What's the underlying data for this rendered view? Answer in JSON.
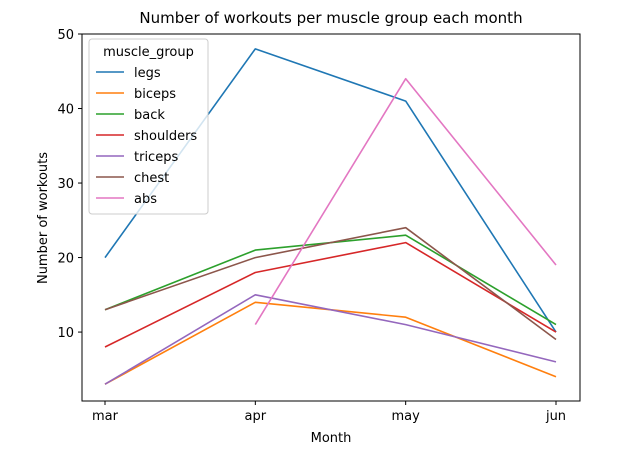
{
  "chart_data": {
    "type": "line",
    "title": "Number of workouts per muscle group each month",
    "xlabel": "Month",
    "ylabel": "Number of workouts",
    "categories": [
      "mar",
      "apr",
      "may",
      "jun"
    ],
    "yticks": [
      10,
      20,
      30,
      40,
      50
    ],
    "ylim": [
      0.75,
      50.0
    ],
    "grid": false,
    "legend": {
      "title": "muscle_group",
      "position": "upper-left"
    },
    "series": [
      {
        "name": "legs",
        "color": "#1f77b4",
        "values": [
          20,
          48,
          41,
          10
        ]
      },
      {
        "name": "biceps",
        "color": "#ff7f0e",
        "values": [
          3,
          14,
          12,
          4
        ]
      },
      {
        "name": "back",
        "color": "#2ca02c",
        "values": [
          13,
          21,
          23,
          11
        ]
      },
      {
        "name": "shoulders",
        "color": "#d62728",
        "values": [
          8,
          18,
          22,
          10
        ]
      },
      {
        "name": "triceps",
        "color": "#9467bd",
        "values": [
          3,
          15,
          11,
          6
        ]
      },
      {
        "name": "chest",
        "color": "#8c564b",
        "values": [
          13,
          20,
          24,
          9
        ]
      },
      {
        "name": "abs",
        "color": "#e377c2",
        "values": [
          null,
          11,
          44,
          19
        ]
      }
    ]
  }
}
